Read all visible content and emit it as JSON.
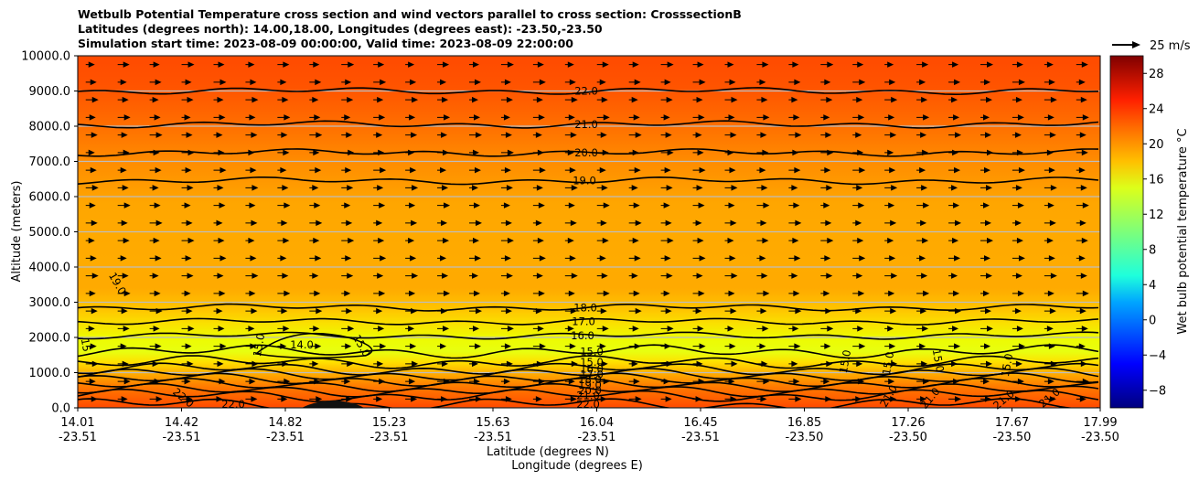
{
  "title_lines": [
    "Wetbulb Potential Temperature cross section and wind vectors parallel to cross section: CrosssectionB",
    "Latitudes (degrees north): 14.00,18.00, Longitudes (degrees east): -23.50,-23.50",
    "Simulation start time: 2023-08-09 00:00:00, Valid time: 2023-08-09 22:00:00"
  ],
  "chart_data": {
    "type": "contour",
    "title": "Wetbulb Potential Temperature cross section and wind vectors parallel to cross section: CrosssectionB",
    "ylabel": "Altitude (meters)",
    "xlabel_lines": [
      "Latitude (degrees N)",
      "Longitude (degrees E)"
    ],
    "ylim": [
      0,
      10000
    ],
    "yticks": [
      "0.0",
      "1000.0",
      "2000.0",
      "3000.0",
      "4000.0",
      "5000.0",
      "6000.0",
      "7000.0",
      "8000.0",
      "9000.0",
      "10000.0"
    ],
    "xticks": [
      {
        "lat": "14.01",
        "lon": "-23.51"
      },
      {
        "lat": "14.42",
        "lon": "-23.51"
      },
      {
        "lat": "14.82",
        "lon": "-23.51"
      },
      {
        "lat": "15.23",
        "lon": "-23.51"
      },
      {
        "lat": "15.63",
        "lon": "-23.51"
      },
      {
        "lat": "16.04",
        "lon": "-23.51"
      },
      {
        "lat": "16.45",
        "lon": "-23.51"
      },
      {
        "lat": "16.85",
        "lon": "-23.50"
      },
      {
        "lat": "17.26",
        "lon": "-23.50"
      },
      {
        "lat": "17.67",
        "lon": "-23.50"
      },
      {
        "lat": "17.99",
        "lon": "-23.50"
      }
    ],
    "contours": [
      {
        "level": "22.0",
        "altitude": 9000
      },
      {
        "level": "21.0",
        "altitude": 8050
      },
      {
        "level": "20.0",
        "altitude": 7250
      },
      {
        "level": "19.0",
        "altitude": 6450
      },
      {
        "level": "18.0",
        "altitude": 2850
      },
      {
        "level": "17.0",
        "altitude": 2450
      },
      {
        "level": "16.0",
        "altitude": 2050
      },
      {
        "level": "15.0",
        "altitude": 1600
      },
      {
        "level": "14.0",
        "altitude": 1900
      },
      {
        "level": "15.0",
        "altitude": 1300
      },
      {
        "level": "16.0",
        "altitude": 1100
      },
      {
        "level": "17.0",
        "altitude": 950
      },
      {
        "level": "18.0",
        "altitude": 800
      },
      {
        "level": "19.0",
        "altitude": 650
      },
      {
        "level": "20.0",
        "altitude": 500
      },
      {
        "level": "21.0",
        "altitude": 350
      },
      {
        "level": "22.0",
        "altitude": 100
      }
    ],
    "extra_contour_labels": [
      "19.0",
      "15",
      "15.0",
      "15.0",
      "15.0",
      "15.0",
      "15.0",
      "15.0",
      "21.0",
      "21.0",
      "21.0",
      "21.0",
      "22.0",
      "22.0"
    ],
    "colorbar": {
      "label": "Wet bulb potential temperature $^\\circ$C",
      "label_display": "Wet bulb potential temperature °C",
      "range": [
        -10,
        30
      ],
      "ticks": [
        "−8",
        "−4",
        "0",
        "4",
        "8",
        "12",
        "16",
        "20",
        "24",
        "28"
      ]
    },
    "wind_reference": {
      "label": "25 m/s",
      "value_ms": 25
    },
    "wind_vectors": {
      "direction": "eastward (parallel to section)",
      "columns": 32,
      "rows": 20
    }
  }
}
